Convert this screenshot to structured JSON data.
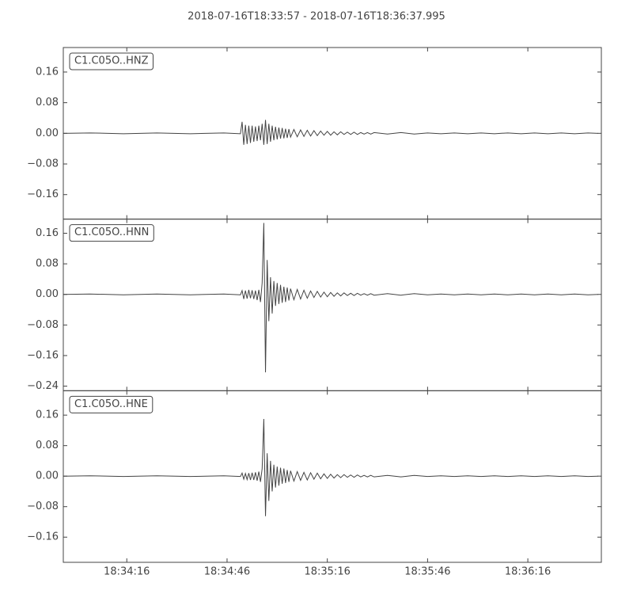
{
  "chart_data": {
    "type": "line",
    "title": "2018-07-16T18:33:57  -  2018-07-16T18:36:37.995",
    "xlim": [
      "18:33:57",
      "18:36:37.995"
    ],
    "xticks": [
      "18:34:16",
      "18:34:46",
      "18:35:16",
      "18:35:46",
      "18:36:16"
    ],
    "x": [
      "18:33:57",
      "18:34:05",
      "18:34:15",
      "18:34:25",
      "18:34:35",
      "18:34:45",
      "18:34:50",
      "18:34:50.5",
      "18:34:51",
      "18:34:51.5",
      "18:34:52",
      "18:34:52.5",
      "18:34:53",
      "18:34:53.5",
      "18:34:54",
      "18:34:54.5",
      "18:34:55",
      "18:34:55.5",
      "18:34:56",
      "18:34:56.5",
      "18:34:57",
      "18:34:57.5",
      "18:34:58",
      "18:34:58.5",
      "18:34:59",
      "18:34:59.5",
      "18:35:00",
      "18:35:00.5",
      "18:35:01",
      "18:35:01.5",
      "18:35:02",
      "18:35:02.5",
      "18:35:03",
      "18:35:03.5",
      "18:35:04",
      "18:35:04.5",
      "18:35:05",
      "18:35:06",
      "18:35:07",
      "18:35:08",
      "18:35:09",
      "18:35:10",
      "18:35:11",
      "18:35:12",
      "18:35:13",
      "18:35:14",
      "18:35:15",
      "18:35:16",
      "18:35:17",
      "18:35:18",
      "18:35:19",
      "18:35:20",
      "18:35:21",
      "18:35:22",
      "18:35:23",
      "18:35:24",
      "18:35:25",
      "18:35:26",
      "18:35:27",
      "18:35:28",
      "18:35:29",
      "18:35:30",
      "18:35:34",
      "18:35:38",
      "18:35:42",
      "18:35:46",
      "18:35:50",
      "18:35:54",
      "18:35:58",
      "18:36:02",
      "18:36:06",
      "18:36:10",
      "18:36:14",
      "18:36:18",
      "18:36:22",
      "18:36:26",
      "18:36:30",
      "18:36:34",
      "18:36:37"
    ],
    "series": [
      {
        "name": "C1.C05O..HNZ",
        "color": "#444444",
        "ylim": [
          -0.224,
          0.224
        ],
        "yticks": [
          {
            "value": -0.16,
            "label": "−0.16"
          },
          {
            "value": -0.08,
            "label": "−0.08"
          },
          {
            "value": 0,
            "label": "0.00"
          },
          0.08,
          0.16
        ],
        "values": [
          0,
          0.001,
          -0.001,
          0.001,
          -0.001,
          0.001,
          -0.001,
          0.03,
          -0.03,
          0.022,
          -0.028,
          0.02,
          -0.025,
          0.02,
          -0.022,
          0.018,
          -0.02,
          0.02,
          -0.018,
          0.025,
          -0.03,
          0.035,
          -0.028,
          0.025,
          -0.022,
          0.02,
          -0.018,
          0.017,
          -0.016,
          0.015,
          -0.014,
          0.014,
          -0.013,
          0.012,
          -0.012,
          0.011,
          -0.01,
          0.01,
          -0.009,
          0.009,
          -0.008,
          0.008,
          -0.007,
          0.007,
          -0.006,
          0.006,
          -0.005,
          0.005,
          -0.005,
          0.004,
          -0.004,
          0.004,
          -0.003,
          0.003,
          -0.003,
          0.003,
          -0.003,
          0.002,
          -0.002,
          0.002,
          -0.002,
          0.002,
          -0.002,
          0.002,
          -0.002,
          0.001,
          -0.001,
          0.001,
          -0.001,
          0.001,
          -0.001,
          0.001,
          -0.001,
          0.001,
          -0.001,
          0.001,
          -0.001,
          0.001,
          0
        ]
      },
      {
        "name": "C1.C05O..HNN",
        "color": "#444444",
        "ylim": [
          -0.252,
          0.197
        ],
        "yticks": [
          {
            "value": -0.24,
            "label": "−0.24"
          },
          {
            "value": -0.16,
            "label": "−0.16"
          },
          {
            "value": -0.08,
            "label": "−0.08"
          },
          {
            "value": 0,
            "label": "0.00"
          },
          0.08,
          0.16
        ],
        "values": [
          0,
          0.001,
          -0.001,
          0.001,
          -0.001,
          0.001,
          -0.001,
          0.01,
          -0.012,
          0.01,
          -0.011,
          0.012,
          -0.01,
          0.011,
          -0.012,
          0.01,
          -0.015,
          0.012,
          -0.02,
          0.03,
          0.187,
          -0.204,
          0.09,
          -0.07,
          0.045,
          -0.05,
          0.035,
          -0.03,
          0.03,
          -0.025,
          0.025,
          -0.022,
          0.02,
          -0.02,
          0.018,
          -0.016,
          0.015,
          -0.014,
          0.013,
          -0.012,
          0.011,
          -0.01,
          0.009,
          -0.008,
          0.008,
          -0.007,
          0.006,
          -0.006,
          0.005,
          -0.005,
          0.004,
          -0.004,
          0.004,
          -0.003,
          0.003,
          -0.003,
          0.003,
          -0.002,
          0.002,
          -0.002,
          0.002,
          -0.002,
          0.002,
          -0.002,
          0.002,
          -0.001,
          0.001,
          -0.001,
          0.001,
          -0.001,
          0.001,
          -0.001,
          0.001,
          -0.001,
          0.001,
          -0.001,
          0.001,
          -0.001,
          0
        ]
      },
      {
        "name": "C1.C05O..HNE",
        "color": "#444444",
        "ylim": [
          -0.226,
          0.224
        ],
        "yticks": [
          {
            "value": -0.16,
            "label": "−0.16"
          },
          {
            "value": -0.08,
            "label": "−0.08"
          },
          {
            "value": 0,
            "label": "0.00"
          },
          0.08,
          0.16
        ],
        "values": [
          0,
          0.001,
          -0.001,
          0.001,
          -0.001,
          0.001,
          -0.001,
          0.008,
          -0.008,
          0.007,
          -0.009,
          0.008,
          -0.01,
          0.009,
          -0.01,
          0.01,
          -0.012,
          0.012,
          -0.015,
          0.02,
          0.15,
          -0.105,
          0.06,
          -0.065,
          0.04,
          -0.04,
          0.03,
          -0.03,
          0.025,
          -0.025,
          0.022,
          -0.02,
          0.02,
          -0.018,
          0.016,
          -0.015,
          0.014,
          -0.013,
          0.012,
          -0.011,
          0.01,
          -0.01,
          0.009,
          -0.008,
          0.008,
          -0.007,
          0.006,
          -0.006,
          0.005,
          -0.005,
          0.004,
          -0.004,
          0.004,
          -0.003,
          0.003,
          -0.003,
          0.003,
          -0.002,
          0.002,
          -0.002,
          0.002,
          -0.002,
          0.002,
          -0.002,
          0.002,
          -0.001,
          0.001,
          -0.001,
          0.001,
          -0.001,
          0.001,
          -0.001,
          0.001,
          -0.001,
          0.001,
          -0.001,
          0.001,
          -0.001,
          0
        ]
      }
    ]
  }
}
